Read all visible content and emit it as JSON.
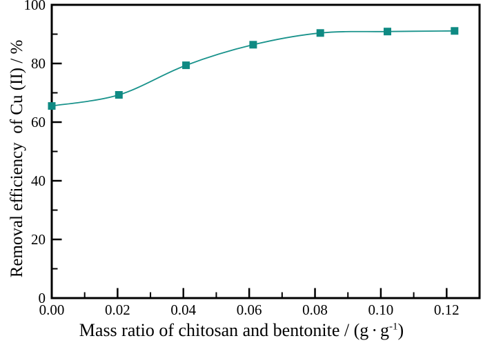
{
  "figure": {
    "background": "#ffffff",
    "frame_color": "#000000",
    "accent_color": "#14908a"
  },
  "labels": {
    "y_axis_title": "Removal efficiency  of Cu (II) / %",
    "x_axis_title_main": "Mass ratio of chitosan and bentonite / (g",
    "x_axis_title_dot": "·",
    "x_axis_title_g": "g",
    "x_axis_title_sup": "-1",
    "x_axis_title_close": ")"
  },
  "chart_data": {
    "type": "line",
    "title": "",
    "xlabel": "Mass ratio of chitosan and bentonite / (g·g⁻¹)",
    "ylabel": "Removal efficiency of Cu (II) / %",
    "x": [
      0,
      0.0204,
      0.0408,
      0.0612,
      0.0816,
      0.102,
      0.1224
    ],
    "series": [
      {
        "name": "Removal efficiency of Cu(II)",
        "values": [
          65.5,
          69.3,
          79.4,
          86.4,
          90.4,
          90.9,
          91.1
        ],
        "line_color": "#18928b",
        "marker_color": "#0f8a83",
        "marker": "square",
        "smooth": true
      }
    ],
    "xlim": [
      0,
      0.13
    ],
    "ylim": [
      0,
      100
    ],
    "x_ticks": [
      0,
      0.02,
      0.04,
      0.06,
      0.08,
      0.1,
      0.12
    ],
    "x_tick_labels": [
      "0.00",
      "0.02",
      "0.04",
      "0.06",
      "0.08",
      "0.10",
      "0.12"
    ],
    "y_ticks": [
      0,
      20,
      40,
      60,
      80,
      100
    ],
    "y_tick_labels": [
      "0",
      "20",
      "40",
      "60",
      "80",
      "100"
    ],
    "x_minor_step": 0.01,
    "y_minor_step": 10,
    "tick_direction": "in",
    "grid": false,
    "legend": "none"
  }
}
